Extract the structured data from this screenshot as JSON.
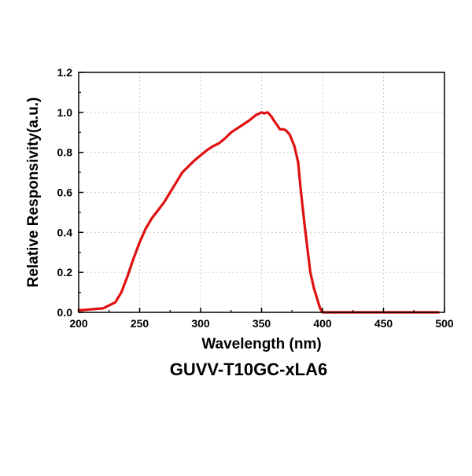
{
  "caption": "GUVV-T10GC-xLA6",
  "chart_data": {
    "type": "line",
    "title": "",
    "xlabel": "Wavelength (nm)",
    "ylabel": "Relative Responsivity(a.u.)",
    "xlim": [
      200,
      500
    ],
    "ylim": [
      0,
      1.2
    ],
    "xticks": [
      "200",
      "250",
      "300",
      "350",
      "400",
      "450",
      "500"
    ],
    "yticks": [
      "0.0",
      "0.2",
      "0.4",
      "0.6",
      "0.8",
      "1.0",
      "1.2"
    ],
    "grid": true,
    "series_color": "#e01010",
    "series": [
      {
        "x": [
          200,
          210,
          220,
          230,
          235,
          240,
          245,
          250,
          255,
          260,
          265,
          270,
          275,
          280,
          285,
          290,
          295,
          300,
          305,
          310,
          315,
          320,
          325,
          330,
          335,
          340,
          345,
          350,
          352,
          355,
          358,
          360,
          363,
          365,
          368,
          370,
          373,
          375,
          377,
          380,
          382,
          385,
          388,
          390,
          393,
          396,
          398,
          400,
          410,
          420,
          440,
          460,
          480,
          495
        ],
        "y": [
          0.01,
          0.015,
          0.02,
          0.05,
          0.1,
          0.18,
          0.27,
          0.35,
          0.42,
          0.47,
          0.51,
          0.55,
          0.6,
          0.65,
          0.7,
          0.73,
          0.76,
          0.785,
          0.81,
          0.83,
          0.845,
          0.87,
          0.9,
          0.92,
          0.94,
          0.96,
          0.985,
          1.0,
          0.995,
          1.0,
          0.98,
          0.96,
          0.935,
          0.915,
          0.915,
          0.91,
          0.89,
          0.86,
          0.83,
          0.75,
          0.62,
          0.45,
          0.3,
          0.2,
          0.12,
          0.06,
          0.02,
          0.0,
          0.0,
          0.0,
          0.0,
          0.0,
          0.0,
          0.0
        ]
      }
    ]
  }
}
